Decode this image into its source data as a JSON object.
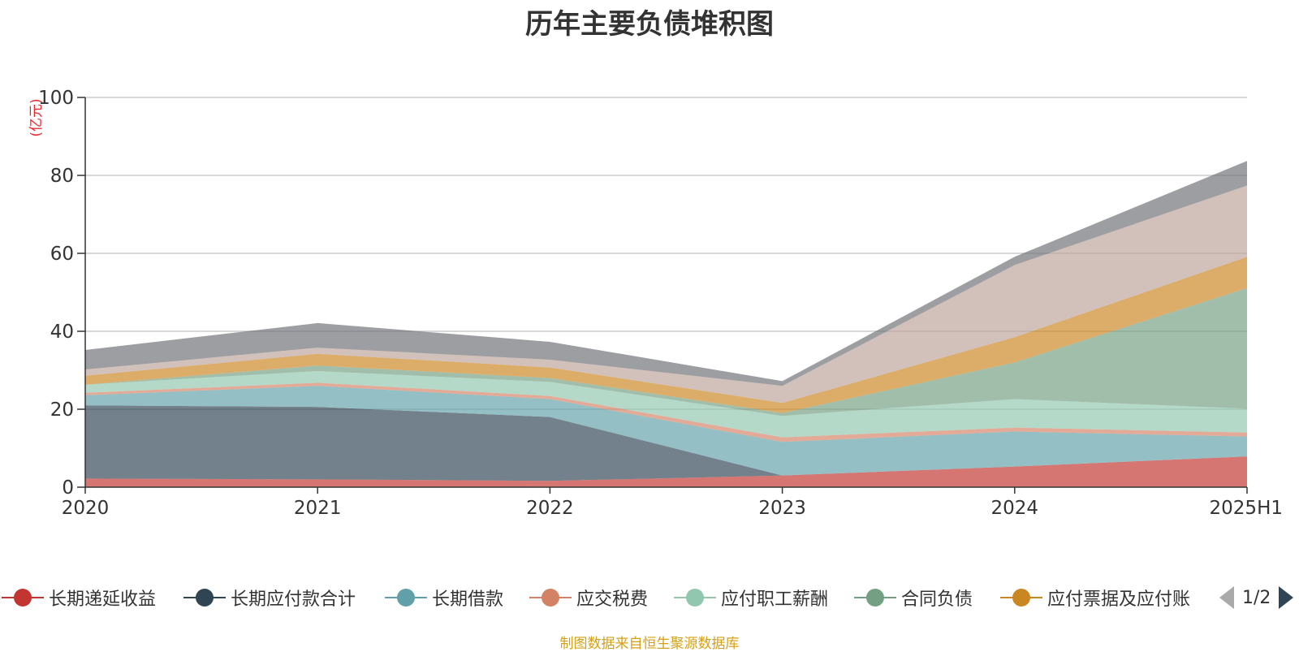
{
  "title": "历年主要负债堆积图",
  "source": "制图数据来自恒生聚源数据库",
  "legend_pager": "1/2",
  "chart_data": {
    "type": "area",
    "stacked": true,
    "title": "历年主要负债堆积图",
    "ylabel": "(亿元)",
    "xlabel": "",
    "categories": [
      "2020",
      "2021",
      "2022",
      "2023",
      "2024",
      "2025H1"
    ],
    "ylim": [
      0,
      100
    ],
    "yticks": [
      0,
      20,
      40,
      60,
      80,
      100
    ],
    "grid": true,
    "legend_position": "bottom",
    "series": [
      {
        "name": "长期递延收益",
        "color": "#c23531",
        "values": [
          2.2,
          2.0,
          1.6,
          3.0,
          5.3,
          7.9
        ]
      },
      {
        "name": "长期应付款合计",
        "color": "#2f4554",
        "values": [
          18.8,
          18.6,
          16.4,
          0,
          0,
          0
        ]
      },
      {
        "name": "长期借款",
        "color": "#61a0a8",
        "values": [
          2.6,
          5.4,
          4.6,
          8.6,
          9.0,
          5.1
        ]
      },
      {
        "name": "应交税费",
        "color": "#d48265",
        "values": [
          0.6,
          0.8,
          0.8,
          1.2,
          1.0,
          1.0
        ]
      },
      {
        "name": "应付职工薪酬",
        "color": "#91c7ae",
        "values": [
          2.1,
          3.0,
          3.6,
          5.5,
          7.3,
          6.1
        ]
      },
      {
        "name": "合同负债",
        "color": "#749f83",
        "values": [
          0,
          1.4,
          1.0,
          0.7,
          9.4,
          31.0
        ]
      },
      {
        "name": "应付票据及应付账",
        "color": "#ca8622",
        "values": [
          2.3,
          3.0,
          2.7,
          2.6,
          6.5,
          8.0
        ]
      },
      {
        "name": "",
        "color": "#bda29a",
        "values": [
          1.6,
          1.6,
          2.0,
          4.4,
          18.5,
          18.3
        ]
      },
      {
        "name": "",
        "color": "#6e7074",
        "values": [
          5.0,
          6.3,
          4.6,
          1.2,
          2.1,
          6.3
        ]
      }
    ]
  }
}
